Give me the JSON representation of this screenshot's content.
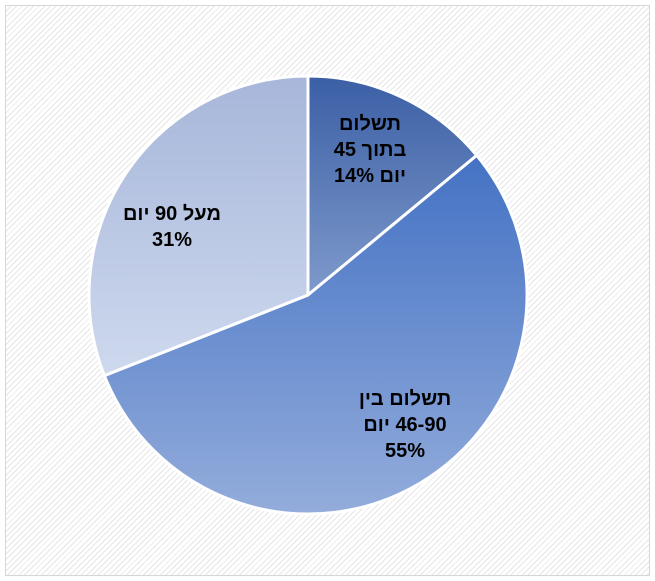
{
  "chart_data": {
    "type": "pie",
    "slices": [
      {
        "label_lines": [
          "תשלום",
          "בתוך 45",
          "יום 14%"
        ],
        "value": 14,
        "color_top": "#3b5fa5",
        "color_bottom": "#7f9acb"
      },
      {
        "label_lines": [
          "תשלום בין",
          "46-90 יום",
          "55%"
        ],
        "value": 55,
        "color_top": "#4472c4",
        "color_bottom": "#93acdb"
      },
      {
        "label_lines": [
          "מעל 90 יום",
          "31%"
        ],
        "value": 31,
        "color_top": "#a7b6da",
        "color_bottom": "#ced9ee"
      }
    ],
    "start_angle_deg": 0,
    "direction": "clockwise",
    "legend": "none",
    "separator_color": "#ffffff"
  }
}
